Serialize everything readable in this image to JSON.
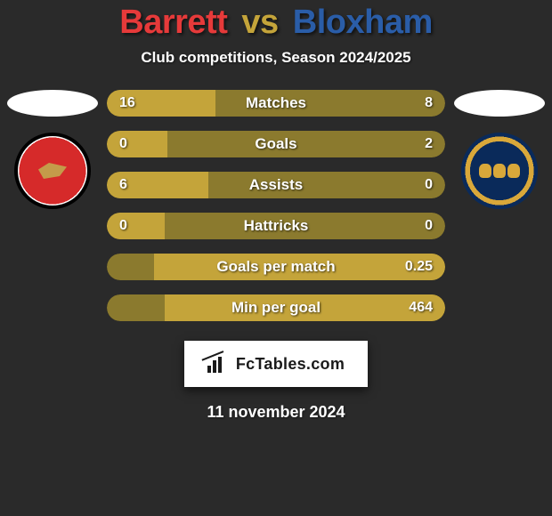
{
  "title": {
    "left": "Barrett",
    "vs": "vs",
    "right": "Bloxham",
    "left_color": "#e63a3a",
    "vs_color": "#c4a43a",
    "right_color": "#2a5da8"
  },
  "subtitle": "Club competitions, Season 2024/2025",
  "colors": {
    "track": "#8b7a2e",
    "fill": "#c4a43a",
    "background": "#2a2a2a"
  },
  "bars": [
    {
      "label": "Matches",
      "left_val": "16",
      "right_val": "8",
      "left_pct": 32,
      "right_pct": 0
    },
    {
      "label": "Goals",
      "left_val": "0",
      "right_val": "2",
      "left_pct": 18,
      "right_pct": 0
    },
    {
      "label": "Assists",
      "left_val": "6",
      "right_val": "0",
      "left_pct": 30,
      "right_pct": 0
    },
    {
      "label": "Hattricks",
      "left_val": "0",
      "right_val": "0",
      "left_pct": 17,
      "right_pct": 0
    },
    {
      "label": "Goals per match",
      "left_val": "",
      "right_val": "0.25",
      "left_pct": 0,
      "right_pct": 86
    },
    {
      "label": "Min per goal",
      "left_val": "",
      "right_val": "464",
      "left_pct": 0,
      "right_pct": 83
    }
  ],
  "footer_brand": "FcTables.com",
  "date": "11 november 2024"
}
